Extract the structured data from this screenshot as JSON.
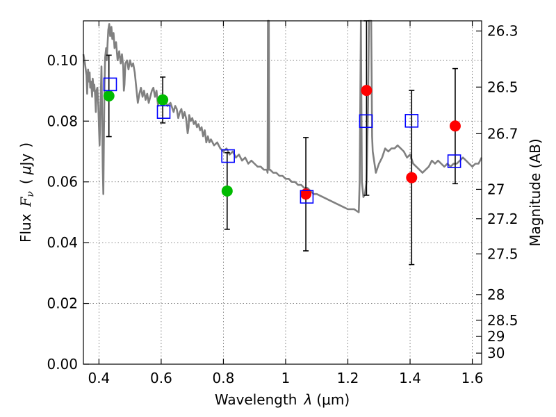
{
  "chart_data": {
    "type": "scatter",
    "title": "",
    "xlabel_parts": [
      "Wavelength",
      "λ",
      "(μm)"
    ],
    "ylabel_parts": [
      "Flux",
      "F",
      "ν",
      "(",
      "μ",
      "Jy",
      ")"
    ],
    "y2label": "Magnitude (AB)",
    "xlim": [
      0.35,
      1.63
    ],
    "ylim": [
      0.0,
      0.113
    ],
    "x_ticks": [
      0.4,
      0.6,
      0.8,
      1.0,
      1.2,
      1.4,
      1.6
    ],
    "x_tick_labels": [
      "0.4",
      "0.6",
      "0.8",
      "1",
      "1.2",
      "1.4",
      "1.6"
    ],
    "y_ticks": [
      0.0,
      0.02,
      0.04,
      0.06,
      0.08,
      0.1
    ],
    "y_tick_labels": [
      "0.00",
      "0.02",
      "0.04",
      "0.06",
      "0.08",
      "0.10"
    ],
    "y2_ticks": [
      26.3,
      26.5,
      26.7,
      27,
      27.2,
      27.5,
      28,
      28.5,
      29,
      30
    ],
    "y2_tick_labels": [
      "26.3",
      "26.5",
      "26.7",
      "27",
      "27.2",
      "27.5",
      "28",
      "28.5",
      "29",
      "30"
    ],
    "grid": true,
    "series": [
      {
        "name": "model-spectrum",
        "kind": "line",
        "color": "#808080",
        "points": [
          [
            0.35,
            0.102
          ],
          [
            0.355,
            0.099
          ],
          [
            0.36,
            0.095
          ],
          [
            0.362,
            0.089
          ],
          [
            0.365,
            0.097
          ],
          [
            0.368,
            0.093
          ],
          [
            0.37,
            0.096
          ],
          [
            0.372,
            0.091
          ],
          [
            0.375,
            0.093
          ],
          [
            0.378,
            0.088
          ],
          [
            0.38,
            0.094
          ],
          [
            0.383,
            0.09
          ],
          [
            0.385,
            0.092
          ],
          [
            0.388,
            0.088
          ],
          [
            0.39,
            0.083
          ],
          [
            0.392,
            0.09
          ],
          [
            0.395,
            0.091
          ],
          [
            0.398,
            0.085
          ],
          [
            0.4,
            0.078
          ],
          [
            0.402,
            0.072
          ],
          [
            0.405,
            0.085
          ],
          [
            0.408,
            0.098
          ],
          [
            0.41,
            0.083
          ],
          [
            0.412,
            0.065
          ],
          [
            0.414,
            0.056
          ],
          [
            0.416,
            0.075
          ],
          [
            0.418,
            0.092
          ],
          [
            0.42,
            0.101
          ],
          [
            0.423,
            0.104
          ],
          [
            0.425,
            0.1
          ],
          [
            0.428,
            0.106
          ],
          [
            0.43,
            0.11
          ],
          [
            0.433,
            0.112
          ],
          [
            0.436,
            0.108
          ],
          [
            0.44,
            0.111
          ],
          [
            0.443,
            0.107
          ],
          [
            0.447,
            0.109
          ],
          [
            0.45,
            0.104
          ],
          [
            0.455,
            0.106
          ],
          [
            0.46,
            0.1
          ],
          [
            0.465,
            0.103
          ],
          [
            0.47,
            0.099
          ],
          [
            0.474,
            0.102
          ],
          [
            0.478,
            0.098
          ],
          [
            0.48,
            0.09
          ],
          [
            0.482,
            0.092
          ],
          [
            0.485,
            0.099
          ],
          [
            0.49,
            0.1
          ],
          [
            0.495,
            0.097
          ],
          [
            0.5,
            0.1
          ],
          [
            0.505,
            0.098
          ],
          [
            0.51,
            0.099
          ],
          [
            0.515,
            0.096
          ],
          [
            0.52,
            0.091
          ],
          [
            0.525,
            0.086
          ],
          [
            0.53,
            0.089
          ],
          [
            0.535,
            0.091
          ],
          [
            0.54,
            0.088
          ],
          [
            0.545,
            0.09
          ],
          [
            0.55,
            0.087
          ],
          [
            0.555,
            0.089
          ],
          [
            0.56,
            0.086
          ],
          [
            0.565,
            0.088
          ],
          [
            0.57,
            0.09
          ],
          [
            0.575,
            0.091
          ],
          [
            0.58,
            0.088
          ],
          [
            0.585,
            0.09
          ],
          [
            0.59,
            0.085
          ],
          [
            0.595,
            0.088
          ],
          [
            0.6,
            0.086
          ],
          [
            0.61,
            0.087
          ],
          [
            0.62,
            0.085
          ],
          [
            0.63,
            0.086
          ],
          [
            0.64,
            0.083
          ],
          [
            0.645,
            0.085
          ],
          [
            0.65,
            0.084
          ],
          [
            0.655,
            0.081
          ],
          [
            0.66,
            0.083
          ],
          [
            0.665,
            0.084
          ],
          [
            0.67,
            0.081
          ],
          [
            0.675,
            0.083
          ],
          [
            0.68,
            0.081
          ],
          [
            0.685,
            0.076
          ],
          [
            0.688,
            0.078
          ],
          [
            0.69,
            0.082
          ],
          [
            0.695,
            0.08
          ],
          [
            0.7,
            0.081
          ],
          [
            0.705,
            0.079
          ],
          [
            0.71,
            0.08
          ],
          [
            0.715,
            0.078
          ],
          [
            0.72,
            0.079
          ],
          [
            0.725,
            0.077
          ],
          [
            0.73,
            0.078
          ],
          [
            0.735,
            0.075
          ],
          [
            0.74,
            0.077
          ],
          [
            0.745,
            0.073
          ],
          [
            0.75,
            0.075
          ],
          [
            0.755,
            0.073
          ],
          [
            0.76,
            0.074
          ],
          [
            0.77,
            0.072
          ],
          [
            0.78,
            0.073
          ],
          [
            0.79,
            0.071
          ],
          [
            0.8,
            0.07
          ],
          [
            0.81,
            0.071
          ],
          [
            0.82,
            0.069
          ],
          [
            0.83,
            0.07
          ],
          [
            0.84,
            0.068
          ],
          [
            0.85,
            0.069
          ],
          [
            0.86,
            0.067
          ],
          [
            0.87,
            0.068
          ],
          [
            0.88,
            0.066
          ],
          [
            0.89,
            0.067
          ],
          [
            0.9,
            0.066
          ],
          [
            0.91,
            0.065
          ],
          [
            0.92,
            0.065
          ],
          [
            0.93,
            0.064
          ],
          [
            0.94,
            0.064
          ],
          [
            0.942,
            0.063
          ],
          [
            0.943,
            0.113
          ],
          [
            0.946,
            0.113
          ],
          [
            0.947,
            0.064
          ],
          [
            0.95,
            0.064
          ],
          [
            0.96,
            0.063
          ],
          [
            0.97,
            0.063
          ],
          [
            0.98,
            0.062
          ],
          [
            0.99,
            0.062
          ],
          [
            1.0,
            0.061
          ],
          [
            1.01,
            0.061
          ],
          [
            1.02,
            0.06
          ],
          [
            1.03,
            0.06
          ],
          [
            1.04,
            0.059
          ],
          [
            1.05,
            0.059
          ],
          [
            1.06,
            0.058
          ],
          [
            1.07,
            0.058
          ],
          [
            1.08,
            0.057
          ],
          [
            1.09,
            0.056
          ],
          [
            1.1,
            0.056
          ],
          [
            1.12,
            0.055
          ],
          [
            1.14,
            0.054
          ],
          [
            1.16,
            0.053
          ],
          [
            1.18,
            0.052
          ],
          [
            1.2,
            0.051
          ],
          [
            1.22,
            0.051
          ],
          [
            1.235,
            0.05
          ],
          [
            1.238,
            0.06
          ],
          [
            1.242,
            0.113
          ],
          [
            1.245,
            0.06
          ],
          [
            1.25,
            0.055
          ],
          [
            1.255,
            0.056
          ],
          [
            1.26,
            0.06
          ],
          [
            1.265,
            0.085
          ],
          [
            1.268,
            0.113
          ],
          [
            1.275,
            0.113
          ],
          [
            1.278,
            0.075
          ],
          [
            1.28,
            0.07
          ],
          [
            1.29,
            0.063
          ],
          [
            1.3,
            0.066
          ],
          [
            1.31,
            0.068
          ],
          [
            1.32,
            0.071
          ],
          [
            1.33,
            0.07
          ],
          [
            1.34,
            0.071
          ],
          [
            1.35,
            0.071
          ],
          [
            1.36,
            0.072
          ],
          [
            1.37,
            0.071
          ],
          [
            1.38,
            0.07
          ],
          [
            1.39,
            0.068
          ],
          [
            1.4,
            0.069
          ],
          [
            1.41,
            0.066
          ],
          [
            1.42,
            0.065
          ],
          [
            1.43,
            0.064
          ],
          [
            1.44,
            0.063
          ],
          [
            1.45,
            0.064
          ],
          [
            1.46,
            0.065
          ],
          [
            1.47,
            0.067
          ],
          [
            1.48,
            0.066
          ],
          [
            1.49,
            0.067
          ],
          [
            1.5,
            0.066
          ],
          [
            1.51,
            0.065
          ],
          [
            1.52,
            0.066
          ],
          [
            1.53,
            0.065
          ],
          [
            1.54,
            0.066
          ],
          [
            1.55,
            0.066
          ],
          [
            1.56,
            0.067
          ],
          [
            1.57,
            0.068
          ],
          [
            1.58,
            0.067
          ],
          [
            1.59,
            0.066
          ],
          [
            1.6,
            0.065
          ],
          [
            1.61,
            0.066
          ],
          [
            1.62,
            0.066
          ],
          [
            1.63,
            0.068
          ]
        ]
      },
      {
        "name": "green-observed",
        "kind": "marker-circle",
        "color": "#00bb00",
        "points": [
          [
            0.432,
            0.0883
          ],
          [
            0.605,
            0.087
          ],
          [
            0.812,
            0.057
          ]
        ]
      },
      {
        "name": "red-observed",
        "kind": "marker-circle",
        "color": "#ff0000",
        "points": [
          [
            1.065,
            0.056
          ],
          [
            1.26,
            0.0901
          ],
          [
            1.405,
            0.0614
          ],
          [
            1.545,
            0.0784
          ]
        ]
      },
      {
        "name": "model-bandpass",
        "kind": "marker-square",
        "color": "#0000ff",
        "points": [
          [
            0.436,
            0.0921
          ],
          [
            0.608,
            0.083
          ],
          [
            0.815,
            0.0685
          ],
          [
            1.068,
            0.0551
          ],
          [
            1.258,
            0.08
          ],
          [
            1.405,
            0.0801
          ],
          [
            1.542,
            0.0668
          ]
        ]
      }
    ],
    "error_bars": [
      {
        "x": 0.432,
        "low": 0.0749,
        "high": 0.1017
      },
      {
        "x": 0.605,
        "low": 0.0794,
        "high": 0.0945
      },
      {
        "x": 0.812,
        "low": 0.0444,
        "high": 0.0696
      },
      {
        "x": 1.065,
        "low": 0.0373,
        "high": 0.0746
      },
      {
        "x": 1.26,
        "low": 0.0556,
        "high": 0.113
      },
      {
        "x": 1.405,
        "low": 0.0328,
        "high": 0.0901
      },
      {
        "x": 1.545,
        "low": 0.0594,
        "high": 0.0973
      }
    ]
  }
}
